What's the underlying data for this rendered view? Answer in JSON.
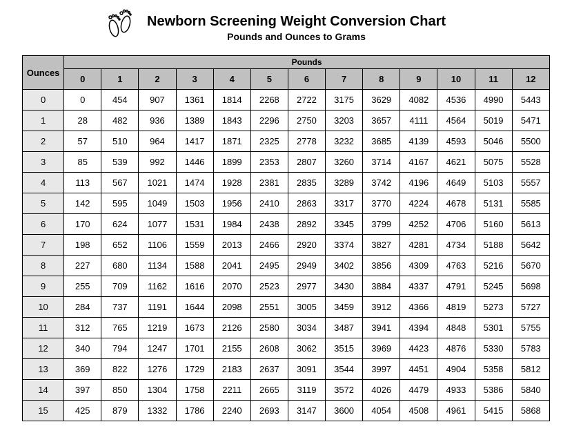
{
  "title": "Newborn Screening Weight Conversion Chart",
  "subtitle": "Pounds and Ounces to Grams",
  "pounds_label": "Pounds",
  "ounces_label": "Ounces",
  "columns": [
    "0",
    "1",
    "2",
    "3",
    "4",
    "5",
    "6",
    "7",
    "8",
    "9",
    "10",
    "11",
    "12"
  ],
  "rows": [
    {
      "oz": "0",
      "v": [
        "0",
        "454",
        "907",
        "1361",
        "1814",
        "2268",
        "2722",
        "3175",
        "3629",
        "4082",
        "4536",
        "4990",
        "5443"
      ]
    },
    {
      "oz": "1",
      "v": [
        "28",
        "482",
        "936",
        "1389",
        "1843",
        "2296",
        "2750",
        "3203",
        "3657",
        "4111",
        "4564",
        "5019",
        "5471"
      ]
    },
    {
      "oz": "2",
      "v": [
        "57",
        "510",
        "964",
        "1417",
        "1871",
        "2325",
        "2778",
        "3232",
        "3685",
        "4139",
        "4593",
        "5046",
        "5500"
      ]
    },
    {
      "oz": "3",
      "v": [
        "85",
        "539",
        "992",
        "1446",
        "1899",
        "2353",
        "2807",
        "3260",
        "3714",
        "4167",
        "4621",
        "5075",
        "5528"
      ]
    },
    {
      "oz": "4",
      "v": [
        "113",
        "567",
        "1021",
        "1474",
        "1928",
        "2381",
        "2835",
        "3289",
        "3742",
        "4196",
        "4649",
        "5103",
        "5557"
      ]
    },
    {
      "oz": "5",
      "v": [
        "142",
        "595",
        "1049",
        "1503",
        "1956",
        "2410",
        "2863",
        "3317",
        "3770",
        "4224",
        "4678",
        "5131",
        "5585"
      ]
    },
    {
      "oz": "6",
      "v": [
        "170",
        "624",
        "1077",
        "1531",
        "1984",
        "2438",
        "2892",
        "3345",
        "3799",
        "4252",
        "4706",
        "5160",
        "5613"
      ]
    },
    {
      "oz": "7",
      "v": [
        "198",
        "652",
        "1106",
        "1559",
        "2013",
        "2466",
        "2920",
        "3374",
        "3827",
        "4281",
        "4734",
        "5188",
        "5642"
      ]
    },
    {
      "oz": "8",
      "v": [
        "227",
        "680",
        "1134",
        "1588",
        "2041",
        "2495",
        "2949",
        "3402",
        "3856",
        "4309",
        "4763",
        "5216",
        "5670"
      ]
    },
    {
      "oz": "9",
      "v": [
        "255",
        "709",
        "1162",
        "1616",
        "2070",
        "2523",
        "2977",
        "3430",
        "3884",
        "4337",
        "4791",
        "5245",
        "5698"
      ]
    },
    {
      "oz": "10",
      "v": [
        "284",
        "737",
        "1191",
        "1644",
        "2098",
        "2551",
        "3005",
        "3459",
        "3912",
        "4366",
        "4819",
        "5273",
        "5727"
      ]
    },
    {
      "oz": "11",
      "v": [
        "312",
        "765",
        "1219",
        "1673",
        "2126",
        "2580",
        "3034",
        "3487",
        "3941",
        "4394",
        "4848",
        "5301",
        "5755"
      ]
    },
    {
      "oz": "12",
      "v": [
        "340",
        "794",
        "1247",
        "1701",
        "2155",
        "2608",
        "3062",
        "3515",
        "3969",
        "4423",
        "4876",
        "5330",
        "5783"
      ]
    },
    {
      "oz": "13",
      "v": [
        "369",
        "822",
        "1276",
        "1729",
        "2183",
        "2637",
        "3091",
        "3544",
        "3997",
        "4451",
        "4904",
        "5358",
        "5812"
      ]
    },
    {
      "oz": "14",
      "v": [
        "397",
        "850",
        "1304",
        "1758",
        "2211",
        "2665",
        "3119",
        "3572",
        "4026",
        "4479",
        "4933",
        "5386",
        "5840"
      ]
    },
    {
      "oz": "15",
      "v": [
        "425",
        "879",
        "1332",
        "1786",
        "2240",
        "2693",
        "3147",
        "3600",
        "4054",
        "4508",
        "4961",
        "5415",
        "5868"
      ]
    }
  ],
  "style": {
    "header_bg": "#c0c0c0",
    "rowhead_bg": "#e8e8e8",
    "border_color": "#000000",
    "background_color": "#ffffff",
    "title_fontsize": 20,
    "subtitle_fontsize": 14,
    "cell_fontsize": 13
  }
}
